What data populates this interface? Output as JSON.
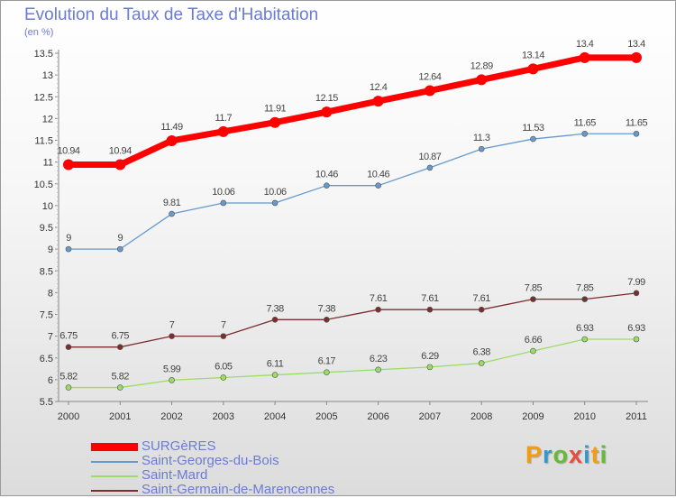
{
  "chart_data": {
    "type": "line",
    "title": "Evolution du Taux de Taxe d'Habitation",
    "subtitle": "(en %)",
    "xlabel": "",
    "ylabel": "",
    "x": [
      "2000",
      "2001",
      "2002",
      "2003",
      "2004",
      "2005",
      "2006",
      "2007",
      "2008",
      "2009",
      "2010",
      "2011"
    ],
    "ylim": [
      5.5,
      13.5
    ],
    "yticks": [
      "5.5",
      "6",
      "6.5",
      "7",
      "7.5",
      "8",
      "8.5",
      "9",
      "9.5",
      "10",
      "10.5",
      "11",
      "11.5",
      "12",
      "12.5",
      "13",
      "13.5"
    ],
    "grid": false,
    "legend_position": "bottom-left",
    "series": [
      {
        "name": "SURGèRES",
        "color": "#ff0000",
        "values": [
          10.94,
          10.94,
          11.49,
          11.7,
          11.91,
          12.15,
          12.4,
          12.64,
          12.89,
          13.14,
          13.4,
          13.4
        ],
        "labels": [
          "10.94",
          "10.94",
          "11.49",
          "11.7",
          "11.91",
          "12.15",
          "12.4",
          "12.64",
          "12.89",
          "13.14",
          "13.4",
          "13.4"
        ]
      },
      {
        "name": "Saint-Georges-du-Bois",
        "color": "#6699cc",
        "values": [
          9,
          9,
          9.81,
          10.06,
          10.06,
          10.46,
          10.46,
          10.87,
          11.3,
          11.53,
          11.65,
          11.65
        ],
        "labels": [
          "9",
          "9",
          "9.81",
          "10.06",
          "10.06",
          "10.46",
          "10.46",
          "10.87",
          "11.3",
          "11.53",
          "11.65",
          "11.65"
        ]
      },
      {
        "name": "Saint-Mard",
        "color": "#99dd66",
        "values": [
          5.82,
          5.82,
          5.99,
          6.05,
          6.11,
          6.17,
          6.23,
          6.29,
          6.38,
          6.66,
          6.93,
          6.93
        ],
        "labels": [
          "5.82",
          "5.82",
          "5.99",
          "6.05",
          "6.11",
          "6.17",
          "6.23",
          "6.29",
          "6.38",
          "6.66",
          "6.93",
          "6.93"
        ]
      },
      {
        "name": "Saint-Germain-de-Marencennes",
        "color": "#7a2e2e",
        "values": [
          6.75,
          6.75,
          7,
          7,
          7.38,
          7.38,
          7.61,
          7.61,
          7.61,
          7.85,
          7.85,
          7.99
        ],
        "labels": [
          "6.75",
          "6.75",
          "7",
          "7",
          "7.38",
          "7.38",
          "7.61",
          "7.61",
          "7.61",
          "7.85",
          "7.85",
          "7.99"
        ]
      }
    ]
  },
  "brand": {
    "text": "Proxiti",
    "colors": [
      "#f39c12",
      "#3399cc",
      "#66bb33",
      "#e74c3c",
      "#3399cc",
      "#f39c12",
      "#66bb33"
    ]
  }
}
